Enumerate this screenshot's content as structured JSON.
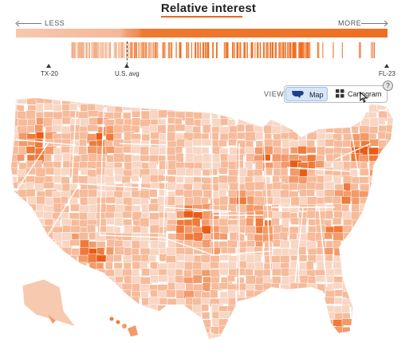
{
  "header": {
    "title": "Relative interest",
    "less_label": "LESS",
    "more_label": "MORE",
    "accent_color": "#f0641f"
  },
  "scale": {
    "markers": [
      {
        "label": "TX-20",
        "position_pct": 10
      },
      {
        "label": "U.S. avg",
        "position_pct": 30
      },
      {
        "label": "FL-23",
        "position_pct": 100
      }
    ]
  },
  "view_toggle": {
    "label": "VIEW",
    "options": [
      {
        "label": "Map",
        "icon": "us-map-icon",
        "selected": true
      },
      {
        "label": "Cartogram",
        "icon": "grid-icon",
        "selected": false
      }
    ],
    "help_label": "?"
  },
  "map": {
    "description_colors": {
      "lightest": "#f9d6c3",
      "light": "#f6bb9b",
      "medium": "#f39a6a",
      "strong": "#ef7a3a",
      "darkest": "#e95c18"
    }
  }
}
